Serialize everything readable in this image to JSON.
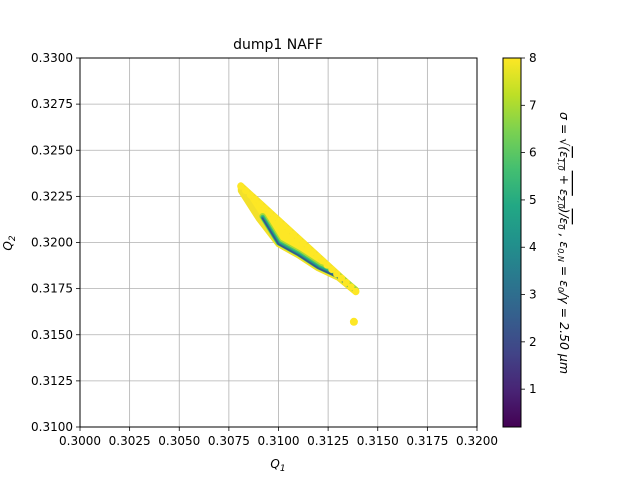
{
  "chart_data": {
    "type": "scatter",
    "title": "dump1 NAFF",
    "xlabel": "Q_1",
    "ylabel": "Q_2",
    "xlim": [
      0.3,
      0.32
    ],
    "ylim": [
      0.31,
      0.33
    ],
    "xticks": [
      "0.3000",
      "0.3025",
      "0.3050",
      "0.3075",
      "0.3100",
      "0.3125",
      "0.3150",
      "0.3175",
      "0.3200"
    ],
    "yticks": [
      "0.3100",
      "0.3125",
      "0.3150",
      "0.3175",
      "0.3200",
      "0.3225",
      "0.3250",
      "0.3275",
      "0.3300"
    ],
    "grid": true,
    "colormap": "viridis",
    "colorbar": {
      "range": [
        0.2,
        8
      ],
      "ticks": [
        "1",
        "2",
        "3",
        "4",
        "5",
        "6",
        "7",
        "8"
      ],
      "label": "σ = √((ε1,0 + ε2,0)/ε0) ,  εO,N = ε0/γ = 2.50 μm"
    },
    "footprint": {
      "upper_edge": [
        [
          0.3081,
          0.3231
        ],
        [
          0.3139,
          0.3174
        ]
      ],
      "lower_edge": [
        [
          0.3081,
          0.3228
        ],
        [
          0.309,
          0.3213
        ],
        [
          0.31,
          0.3199
        ],
        [
          0.311,
          0.3193
        ],
        [
          0.312,
          0.3186
        ],
        [
          0.313,
          0.3181
        ],
        [
          0.3139,
          0.3173
        ]
      ],
      "outer_sigma": 8
    },
    "outlier": {
      "x": 0.3138,
      "y": 0.3157,
      "sigma": 8
    }
  }
}
